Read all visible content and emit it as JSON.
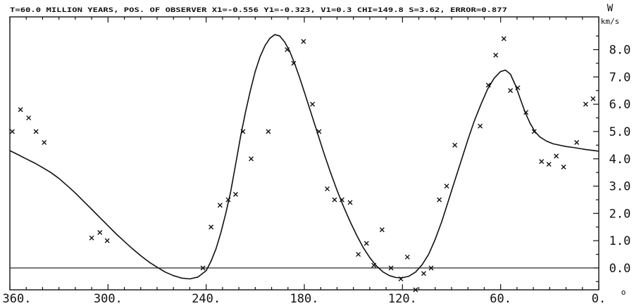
{
  "chart_data": {
    "type": "scatter",
    "header": "T=60.0 MILLION YEARS,   POS. OF OBSERVER   X1=-0.556  Y1=-0.323, V1=0.3  CHI=149.8  S=3.62,  ERROR=0.877",
    "ylabel": "W",
    "yunit": "km/s",
    "xunit": "o",
    "xlim": [
      360,
      0
    ],
    "ylim": [
      -0.8,
      9.2
    ],
    "x_ticks": [
      {
        "value": 360,
        "label": "360."
      },
      {
        "value": 300,
        "label": "300."
      },
      {
        "value": 240,
        "label": "240."
      },
      {
        "value": 180,
        "label": "180."
      },
      {
        "value": 120,
        "label": "120."
      },
      {
        "value": 60,
        "label": "60."
      },
      {
        "value": 0,
        "label": "0."
      }
    ],
    "y_ticks": [
      {
        "value": 0,
        "label": "0.0"
      },
      {
        "value": 1,
        "label": "1.0"
      },
      {
        "value": 2,
        "label": "2.0"
      },
      {
        "value": 3,
        "label": "3.0"
      },
      {
        "value": 4,
        "label": "4.0"
      },
      {
        "value": 5,
        "label": "5.0"
      },
      {
        "value": 6,
        "label": "6.0"
      },
      {
        "value": 7,
        "label": "7.0"
      },
      {
        "value": 8,
        "label": "8.0"
      }
    ],
    "zero_line": 0,
    "grid": false,
    "series": [
      {
        "kind": "observed",
        "marker": "x",
        "points": [
          [
            358.5,
            5.0
          ],
          [
            353.5,
            5.8
          ],
          [
            348.5,
            5.5
          ],
          [
            344,
            5.0
          ],
          [
            339,
            4.6
          ],
          [
            310,
            1.1
          ],
          [
            305,
            1.3
          ],
          [
            300.5,
            1.0
          ],
          [
            242,
            0.0
          ],
          [
            237,
            1.5
          ],
          [
            231.5,
            2.3
          ],
          [
            226.5,
            2.5
          ],
          [
            222,
            2.7
          ],
          [
            217.5,
            5.0
          ],
          [
            212.5,
            4.0
          ],
          [
            202,
            5.0
          ],
          [
            190.5,
            8.0
          ],
          [
            186.5,
            7.5
          ],
          [
            180.5,
            8.3
          ],
          [
            175,
            6.0
          ],
          [
            171,
            5.0
          ],
          [
            166,
            2.9
          ],
          [
            161.5,
            2.5
          ],
          [
            157,
            2.5
          ],
          [
            152,
            2.4
          ],
          [
            147,
            0.5
          ],
          [
            142,
            0.9
          ],
          [
            137.5,
            0.1
          ],
          [
            132.5,
            1.4
          ],
          [
            127,
            0.0
          ],
          [
            121,
            -0.4
          ],
          [
            117,
            0.4
          ],
          [
            112,
            -0.8
          ],
          [
            107,
            -0.2
          ],
          [
            102.5,
            0.0
          ],
          [
            97.5,
            2.5
          ],
          [
            93,
            3.0
          ],
          [
            88,
            4.5
          ],
          [
            72.5,
            5.2
          ],
          [
            67.5,
            6.7
          ],
          [
            63,
            7.8
          ],
          [
            58,
            8.4
          ],
          [
            54,
            6.5
          ],
          [
            49.5,
            6.6
          ],
          [
            44.5,
            5.7
          ],
          [
            39.5,
            5.0
          ],
          [
            35,
            3.9
          ],
          [
            30.5,
            3.8
          ],
          [
            26,
            4.1
          ],
          [
            21.5,
            3.7
          ],
          [
            13.5,
            4.6
          ],
          [
            8,
            6.0
          ],
          [
            3.5,
            6.2
          ]
        ]
      },
      {
        "kind": "model",
        "line": "solid",
        "points": [
          [
            360,
            4.3
          ],
          [
            355,
            4.15
          ],
          [
            350,
            4.0
          ],
          [
            345,
            3.85
          ],
          [
            340,
            3.68
          ],
          [
            335,
            3.5
          ],
          [
            330,
            3.28
          ],
          [
            325,
            3.02
          ],
          [
            320,
            2.75
          ],
          [
            315,
            2.45
          ],
          [
            310,
            2.15
          ],
          [
            305,
            1.85
          ],
          [
            300,
            1.55
          ],
          [
            295,
            1.25
          ],
          [
            290,
            0.97
          ],
          [
            285,
            0.7
          ],
          [
            280,
            0.45
          ],
          [
            275,
            0.22
          ],
          [
            270,
            0.03
          ],
          [
            265,
            -0.15
          ],
          [
            260,
            -0.28
          ],
          [
            255,
            -0.37
          ],
          [
            250,
            -0.4
          ],
          [
            245,
            -0.33
          ],
          [
            240,
            -0.1
          ],
          [
            237,
            0.25
          ],
          [
            234,
            0.7
          ],
          [
            231,
            1.3
          ],
          [
            228,
            2.0
          ],
          [
            225,
            2.8
          ],
          [
            222,
            3.8
          ],
          [
            219,
            4.8
          ],
          [
            216,
            5.7
          ],
          [
            213,
            6.5
          ],
          [
            210,
            7.2
          ],
          [
            207,
            7.75
          ],
          [
            204,
            8.15
          ],
          [
            201,
            8.42
          ],
          [
            198,
            8.55
          ],
          [
            195,
            8.5
          ],
          [
            192,
            8.28
          ],
          [
            189,
            7.95
          ],
          [
            186,
            7.5
          ],
          [
            183,
            7.0
          ],
          [
            180,
            6.45
          ],
          [
            176,
            5.7
          ],
          [
            172,
            4.95
          ],
          [
            168,
            4.2
          ],
          [
            164,
            3.5
          ],
          [
            160,
            2.85
          ],
          [
            156,
            2.25
          ],
          [
            152,
            1.7
          ],
          [
            148,
            1.2
          ],
          [
            144,
            0.75
          ],
          [
            140,
            0.38
          ],
          [
            136,
            0.08
          ],
          [
            132,
            -0.14
          ],
          [
            128,
            -0.28
          ],
          [
            124,
            -0.35
          ],
          [
            120,
            -0.36
          ],
          [
            116,
            -0.3
          ],
          [
            112,
            -0.15
          ],
          [
            108,
            0.12
          ],
          [
            104,
            0.5
          ],
          [
            100,
            1.05
          ],
          [
            96,
            1.7
          ],
          [
            92,
            2.45
          ],
          [
            88,
            3.2
          ],
          [
            84,
            3.95
          ],
          [
            80,
            4.7
          ],
          [
            76,
            5.4
          ],
          [
            72,
            6.0
          ],
          [
            68,
            6.55
          ],
          [
            64,
            6.95
          ],
          [
            60,
            7.2
          ],
          [
            57,
            7.25
          ],
          [
            54,
            7.1
          ],
          [
            51,
            6.7
          ],
          [
            48,
            6.2
          ],
          [
            45,
            5.7
          ],
          [
            42,
            5.3
          ],
          [
            39,
            5.0
          ],
          [
            36,
            4.8
          ],
          [
            32,
            4.65
          ],
          [
            28,
            4.55
          ],
          [
            24,
            4.5
          ],
          [
            20,
            4.45
          ],
          [
            16,
            4.42
          ],
          [
            12,
            4.38
          ],
          [
            8,
            4.34
          ],
          [
            4,
            4.31
          ],
          [
            0,
            4.28
          ]
        ]
      }
    ]
  }
}
